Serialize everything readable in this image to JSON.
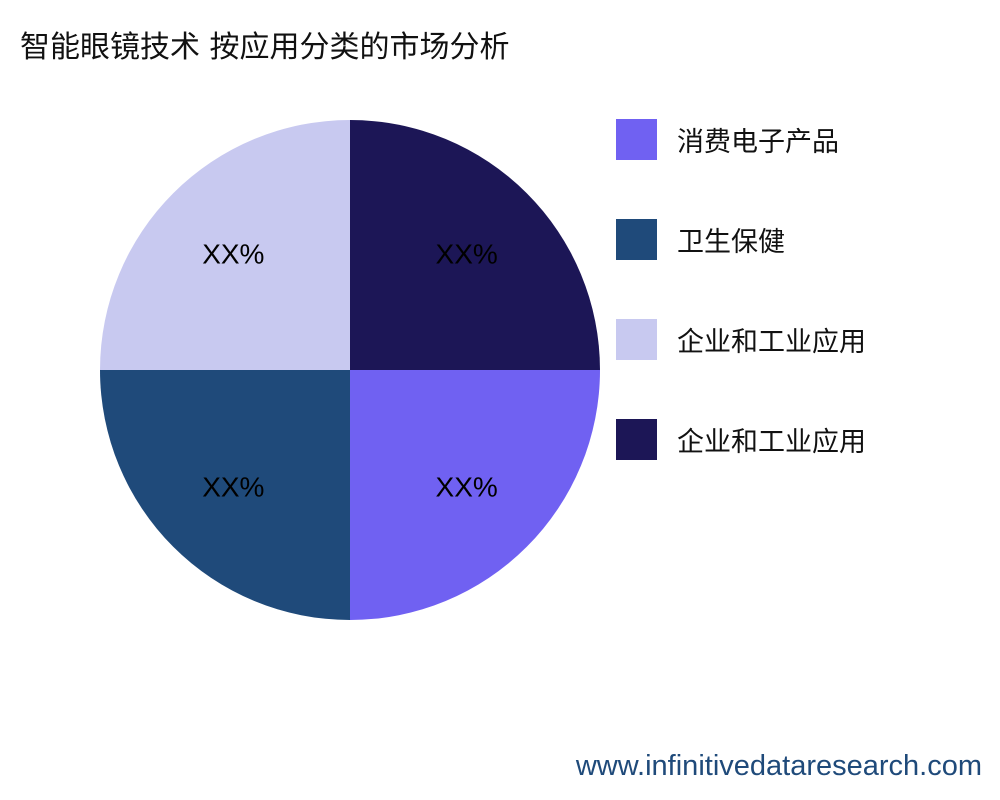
{
  "chart_data": {
    "type": "pie",
    "title": "智能眼镜技术 按应用分类的市场分析",
    "slices": [
      {
        "label": "消费电子产品",
        "value": 25,
        "data_label": "XX%",
        "color": "#7061f2"
      },
      {
        "label": "卫生保健",
        "value": 25,
        "data_label": "XX%",
        "color": "#1f4a7a"
      },
      {
        "label": "企业和工业应用",
        "value": 25,
        "data_label": "XX%",
        "color": "#c8c9f0"
      },
      {
        "label": "企业和工业应用",
        "value": 25,
        "data_label": "XX%",
        "color": "#1c1656"
      }
    ],
    "legend_position": "right"
  },
  "footer": "www.infinitivedataresearch.com"
}
